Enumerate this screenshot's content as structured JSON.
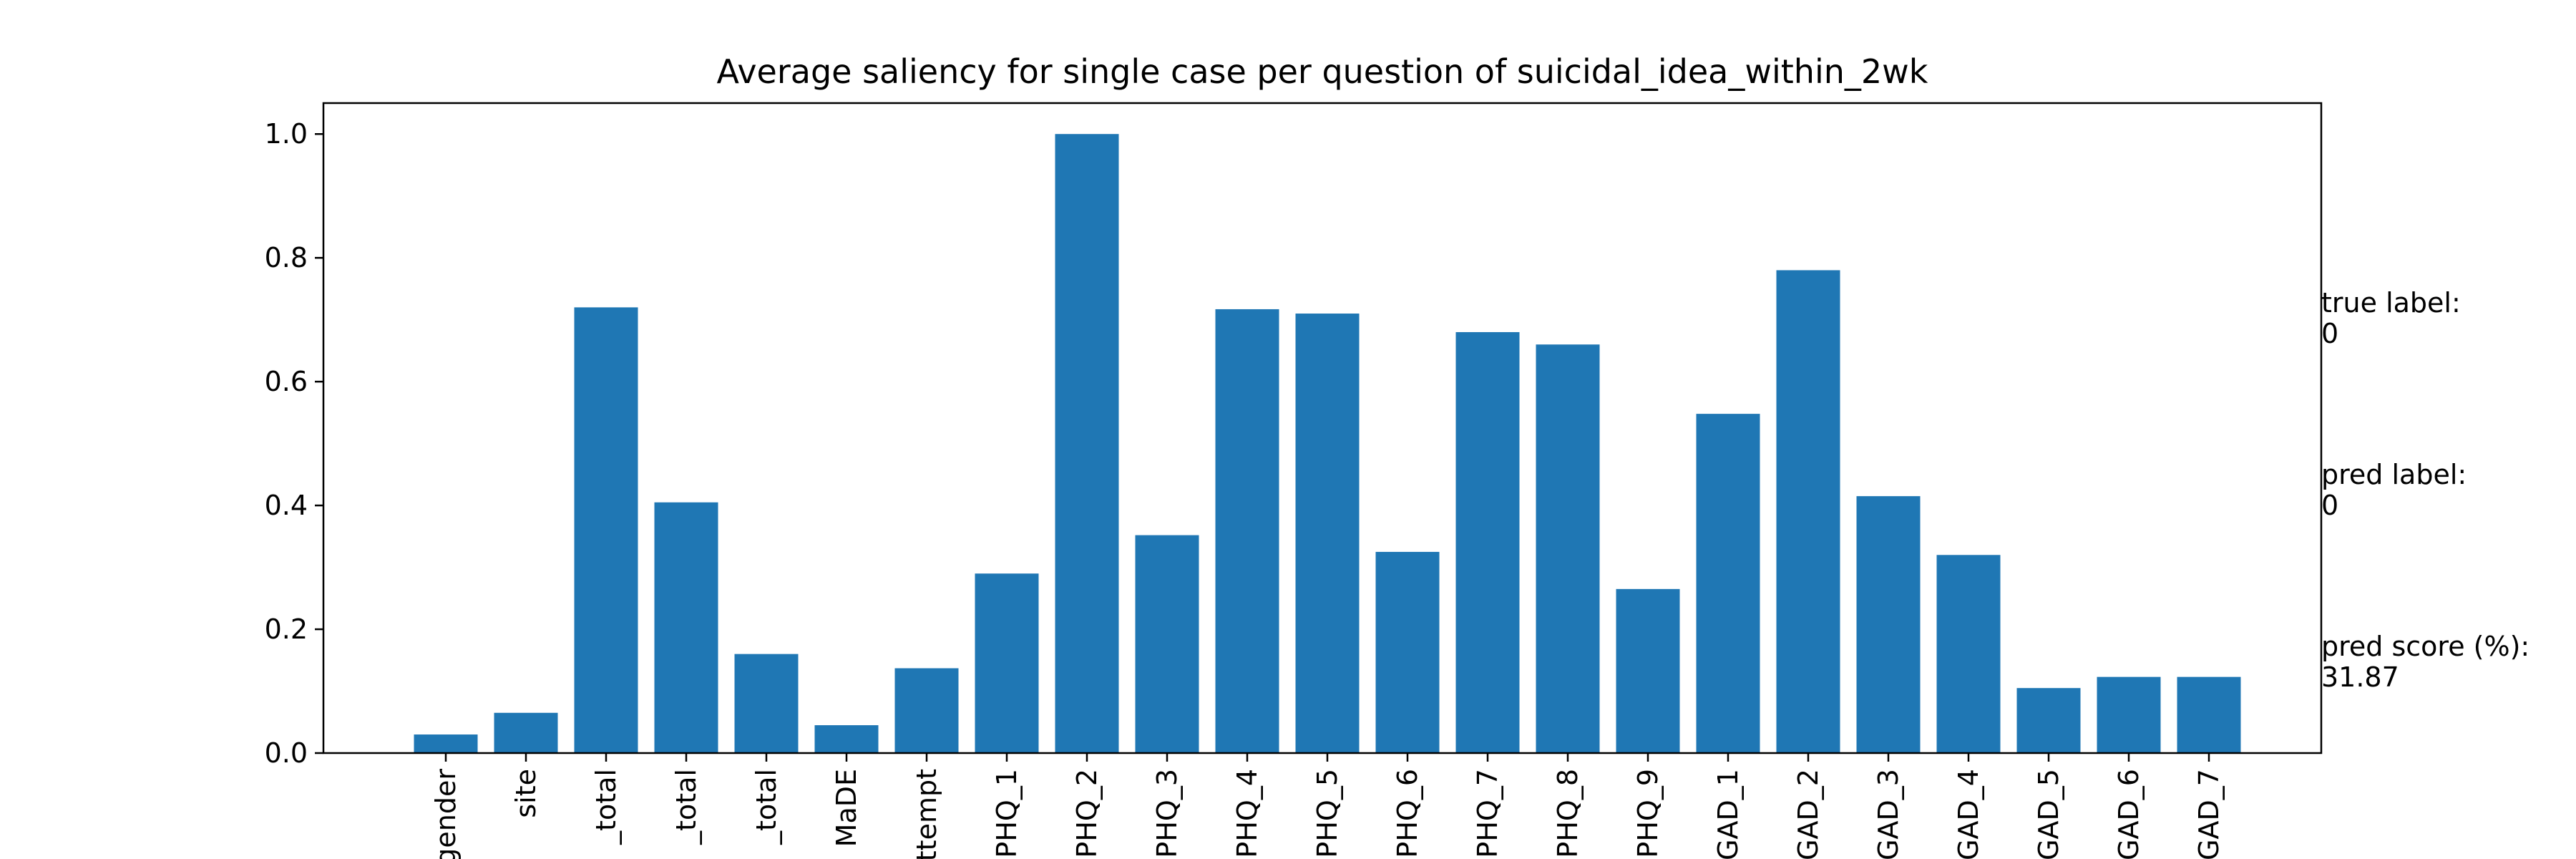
{
  "chart_data": {
    "type": "bar",
    "title": "Average saliency for single case per question of suicidal_idea_within_2wk",
    "categories": [
      "gender",
      "site",
      "_total",
      "_total",
      "_total",
      "MaDE",
      "attempt",
      "PHQ_1",
      "PHQ_2",
      "PHQ_3",
      "PHQ_4",
      "PHQ_5",
      "PHQ_6",
      "PHQ_7",
      "PHQ_8",
      "PHQ_9",
      "GAD_1",
      "GAD_2",
      "GAD_3",
      "GAD_4",
      "GAD_5",
      "GAD_6",
      "GAD_7"
    ],
    "values": [
      0.03,
      0.065,
      0.72,
      0.405,
      0.16,
      0.045,
      0.137,
      0.29,
      1.0,
      0.352,
      0.717,
      0.71,
      0.325,
      0.68,
      0.66,
      0.265,
      0.548,
      0.78,
      0.415,
      0.32,
      0.105,
      0.123,
      0.123
    ],
    "ylim": [
      0,
      1.05
    ],
    "yticks": [
      "0.0",
      "0.2",
      "0.4",
      "0.6",
      "0.8",
      "1.0"
    ],
    "bar_color": "#1f77b4",
    "grid": false
  },
  "annotations": {
    "true_label_title": "true label:",
    "true_label_value": "0",
    "pred_label_title": "pred label:",
    "pred_label_value": "0",
    "pred_score_title": "pred score (%):",
    "pred_score_value": "31.87"
  }
}
